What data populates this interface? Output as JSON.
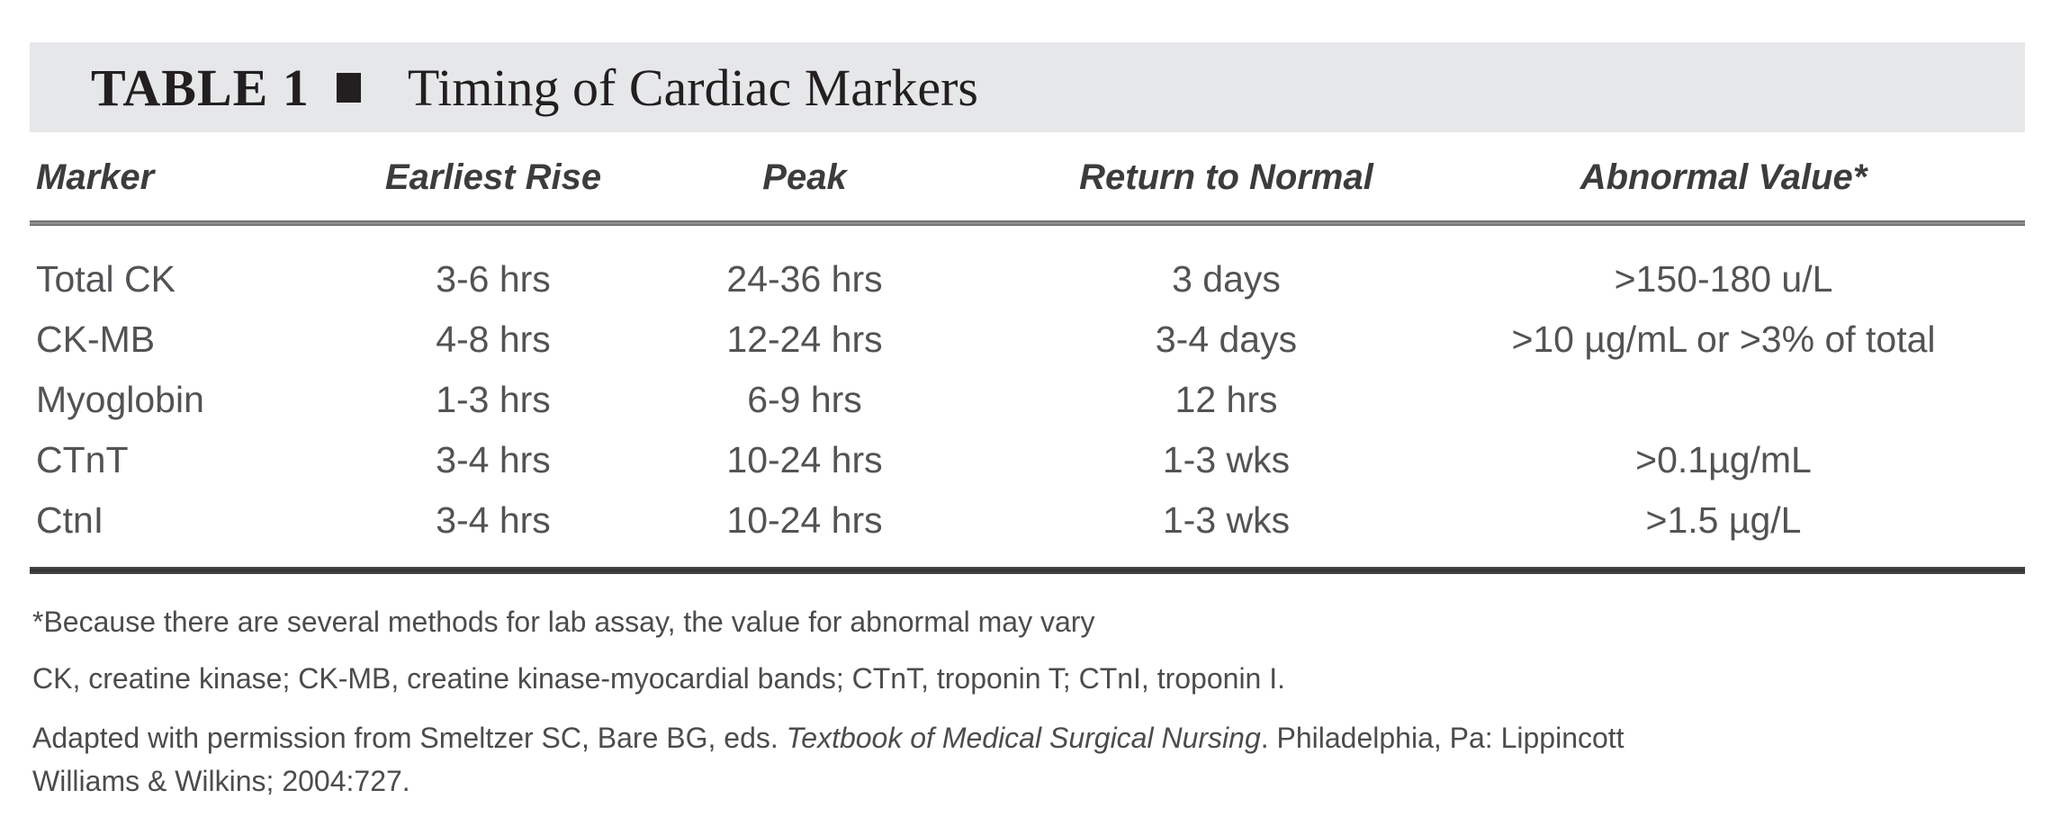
{
  "table": {
    "title_label": "TABLE 1",
    "title": "Timing of Cardiac Markers",
    "columns": [
      "Marker",
      "Earliest Rise",
      "Peak",
      "Return to Normal",
      "Abnormal Value*"
    ],
    "rows": [
      {
        "marker": "Total CK",
        "earliest_rise": "3-6 hrs",
        "peak": "24-36 hrs",
        "return_to_normal": "3 days",
        "abnormal_value": ">150-180 u/L"
      },
      {
        "marker": "CK-MB",
        "earliest_rise": "4-8 hrs",
        "peak": "12-24 hrs",
        "return_to_normal": "3-4 days",
        "abnormal_value": ">10 µg/mL or >3% of total"
      },
      {
        "marker": "Myoglobin",
        "earliest_rise": "1-3 hrs",
        "peak": "6-9 hrs",
        "return_to_normal": "12 hrs",
        "abnormal_value": ""
      },
      {
        "marker": "CTnT",
        "earliest_rise": "3-4 hrs",
        "peak": "10-24 hrs",
        "return_to_normal": "1-3 wks",
        "abnormal_value": ">0.1µg/mL"
      },
      {
        "marker": "CtnI",
        "earliest_rise": "3-4 hrs",
        "peak": "10-24 hrs",
        "return_to_normal": "1-3 wks",
        "abnormal_value": ">1.5 µg/L"
      }
    ]
  },
  "footnotes": {
    "asterisk_note": "*Because there are several methods for lab assay, the value for abnormal may vary",
    "abbreviations": "CK, creatine kinase; CK-MB, creatine kinase-myocardial bands; CTnT, troponin T; CTnI, troponin I.",
    "source_prefix": "Adapted with permission from Smeltzer SC, Bare BG, eds. ",
    "source_title": "Textbook of Medical Surgical Nursing",
    "source_middle": ". Philadelphia, Pa: Lippincott",
    "source_line2": "Williams & Wilkins; 2004:727."
  },
  "colors": {
    "title_bar_background": "#e6e7e9",
    "title_text": "#231f20",
    "header_text": "#3c3c3e",
    "body_text": "#535356",
    "top_rule": "#7a7a7a",
    "bottom_rule": "#3a3a3a"
  }
}
